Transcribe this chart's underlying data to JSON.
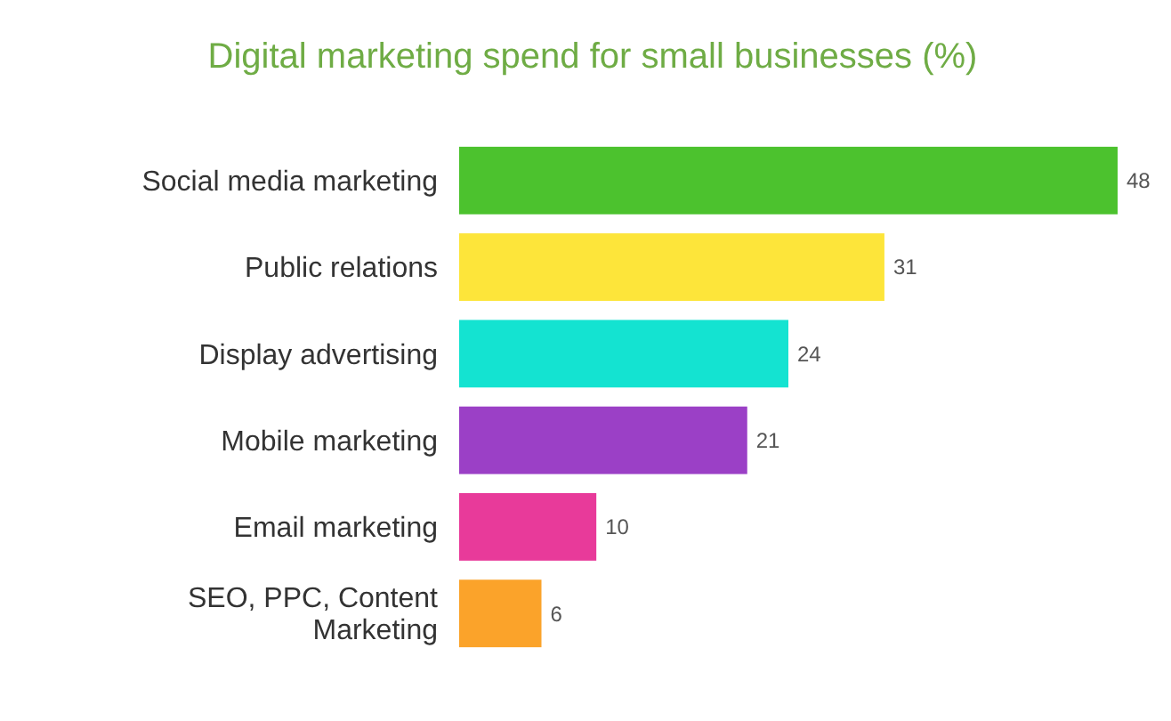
{
  "chart_data": {
    "type": "bar",
    "orientation": "horizontal",
    "title": "Digital marketing spend for small businesses (%)",
    "categories": [
      "Social media marketing",
      "Public relations",
      "Display advertising",
      "Mobile marketing",
      "Email marketing",
      "SEO, PPC, Content Marketing"
    ],
    "values": [
      48,
      31,
      24,
      21,
      10,
      6
    ],
    "colors": [
      "#4cc22e",
      "#fde53a",
      "#14e3d1",
      "#9b40c6",
      "#e83a9a",
      "#fba32a"
    ],
    "data_labels": true,
    "xlim": [
      0,
      48
    ],
    "tick_labels": "y"
  }
}
